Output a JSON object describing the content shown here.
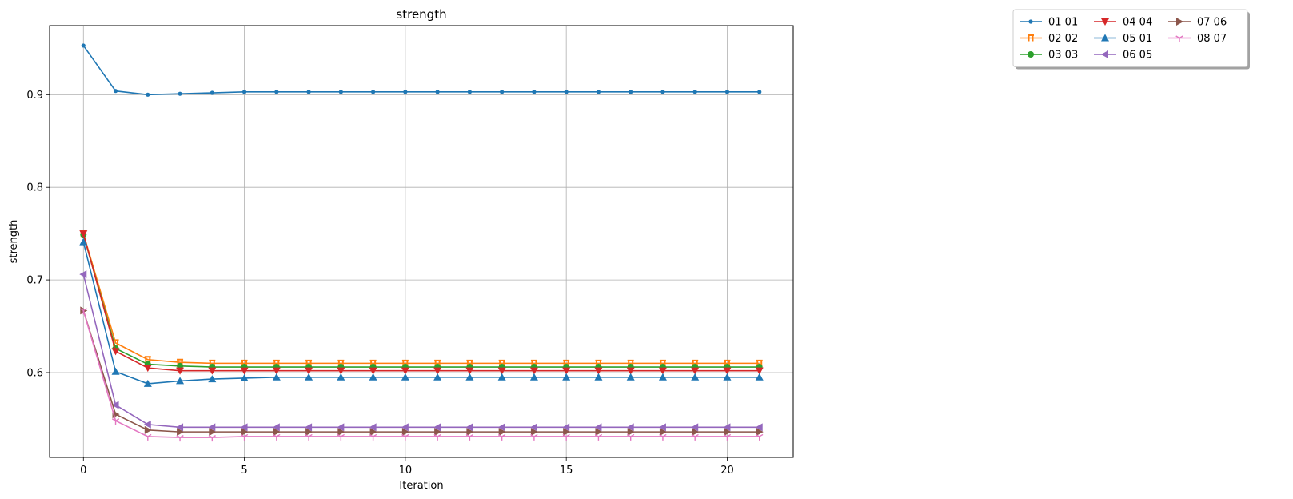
{
  "chart_data": {
    "type": "line",
    "title": "strength",
    "xlabel": "Iteration",
    "ylabel": "strength",
    "xlim": [
      -1.05,
      22.05
    ],
    "ylim": [
      0.5085,
      0.9745
    ],
    "xticks": [
      0,
      5,
      10,
      15,
      20
    ],
    "yticks": [
      0.6,
      0.7,
      0.8,
      0.9
    ],
    "grid": true,
    "legend": {
      "placement": "top-right, outside axes",
      "columns": 3
    },
    "x": [
      0,
      1,
      2,
      3,
      4,
      5,
      6,
      7,
      8,
      9,
      10,
      11,
      12,
      13,
      14,
      15,
      16,
      17,
      18,
      19,
      20,
      21
    ],
    "series": [
      {
        "name": "01 01",
        "color": "#1f77b4",
        "marker": "point",
        "values": [
          0.953,
          0.904,
          0.9,
          0.901,
          0.902,
          0.903,
          0.903,
          0.903,
          0.903,
          0.903,
          0.903,
          0.903,
          0.903,
          0.903,
          0.903,
          0.903,
          0.903,
          0.903,
          0.903,
          0.903,
          0.903,
          0.903
        ]
      },
      {
        "name": "02 02",
        "color": "#ff7f0e",
        "marker": "pi",
        "values": [
          0.75,
          0.632,
          0.614,
          0.611,
          0.61,
          0.61,
          0.61,
          0.61,
          0.61,
          0.61,
          0.61,
          0.61,
          0.61,
          0.61,
          0.61,
          0.61,
          0.61,
          0.61,
          0.61,
          0.61,
          0.61,
          0.61
        ]
      },
      {
        "name": "03 03",
        "color": "#2ca02c",
        "marker": "circle",
        "values": [
          0.749,
          0.626,
          0.609,
          0.607,
          0.606,
          0.606,
          0.606,
          0.606,
          0.606,
          0.606,
          0.606,
          0.606,
          0.606,
          0.606,
          0.606,
          0.606,
          0.606,
          0.606,
          0.606,
          0.606,
          0.606,
          0.606
        ]
      },
      {
        "name": "04 04",
        "color": "#d62728",
        "marker": "triangle-down",
        "values": [
          0.75,
          0.623,
          0.605,
          0.602,
          0.602,
          0.602,
          0.602,
          0.602,
          0.602,
          0.602,
          0.602,
          0.602,
          0.602,
          0.602,
          0.602,
          0.602,
          0.602,
          0.602,
          0.602,
          0.602,
          0.602,
          0.602
        ]
      },
      {
        "name": "05 01",
        "color": "#1f77b4",
        "marker": "triangle-up",
        "values": [
          0.741,
          0.601,
          0.588,
          0.591,
          0.593,
          0.594,
          0.595,
          0.595,
          0.595,
          0.595,
          0.595,
          0.595,
          0.595,
          0.595,
          0.595,
          0.595,
          0.595,
          0.595,
          0.595,
          0.595,
          0.595,
          0.595
        ]
      },
      {
        "name": "06 05",
        "color": "#9467bd",
        "marker": "triangle-left",
        "values": [
          0.706,
          0.565,
          0.544,
          0.541,
          0.541,
          0.541,
          0.541,
          0.541,
          0.541,
          0.541,
          0.541,
          0.541,
          0.541,
          0.541,
          0.541,
          0.541,
          0.541,
          0.541,
          0.541,
          0.541,
          0.541,
          0.541
        ]
      },
      {
        "name": "07 06",
        "color": "#8c564b",
        "marker": "triangle-right",
        "values": [
          0.667,
          0.555,
          0.538,
          0.536,
          0.536,
          0.536,
          0.536,
          0.536,
          0.536,
          0.536,
          0.536,
          0.536,
          0.536,
          0.536,
          0.536,
          0.536,
          0.536,
          0.536,
          0.536,
          0.536,
          0.536,
          0.536
        ]
      },
      {
        "name": "08 07",
        "color": "#e377c2",
        "marker": "tri-down",
        "values": [
          0.667,
          0.548,
          0.531,
          0.53,
          0.53,
          0.531,
          0.531,
          0.531,
          0.531,
          0.531,
          0.531,
          0.531,
          0.531,
          0.531,
          0.531,
          0.531,
          0.531,
          0.531,
          0.531,
          0.531,
          0.531,
          0.531
        ]
      }
    ]
  }
}
